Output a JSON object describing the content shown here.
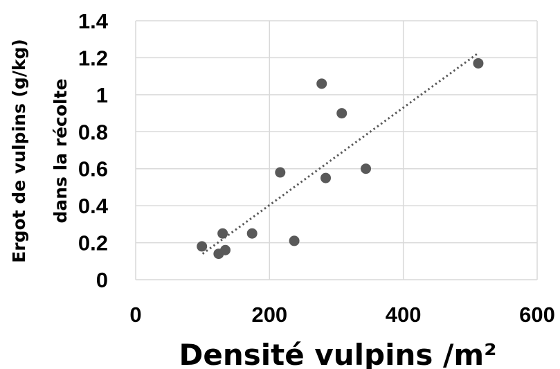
{
  "chart_data": {
    "type": "scatter",
    "xlabel": "Densité vulpins /m²",
    "ylabel_lines": [
      "Ergot de vulpins (g/kg)",
      "dans la récolte"
    ],
    "xlim": [
      0,
      600
    ],
    "ylim": [
      0,
      1.4
    ],
    "x_ticks": [
      0,
      200,
      400,
      600
    ],
    "y_ticks": [
      0,
      0.2,
      0.4,
      0.6,
      0.8,
      1,
      1.2,
      1.4
    ],
    "x_tick_labels": [
      "0",
      "200",
      "400",
      "600"
    ],
    "y_tick_labels": [
      "0",
      "0.2",
      "0.4",
      "0.6",
      "0.8",
      "1",
      "1.2",
      "1.4"
    ],
    "grid": true,
    "marker_color": "#595959",
    "trendline": {
      "style": "dotted linear",
      "start": [
        100,
        0.14
      ],
      "end": [
        510,
        1.22
      ]
    },
    "points": [
      {
        "x": 99,
        "y": 0.18
      },
      {
        "x": 124,
        "y": 0.14
      },
      {
        "x": 130,
        "y": 0.25
      },
      {
        "x": 134,
        "y": 0.16
      },
      {
        "x": 174,
        "y": 0.25
      },
      {
        "x": 216,
        "y": 0.58
      },
      {
        "x": 237,
        "y": 0.21
      },
      {
        "x": 278,
        "y": 1.06
      },
      {
        "x": 284,
        "y": 0.55
      },
      {
        "x": 308,
        "y": 0.9
      },
      {
        "x": 344,
        "y": 0.6
      },
      {
        "x": 512,
        "y": 1.17
      }
    ]
  }
}
